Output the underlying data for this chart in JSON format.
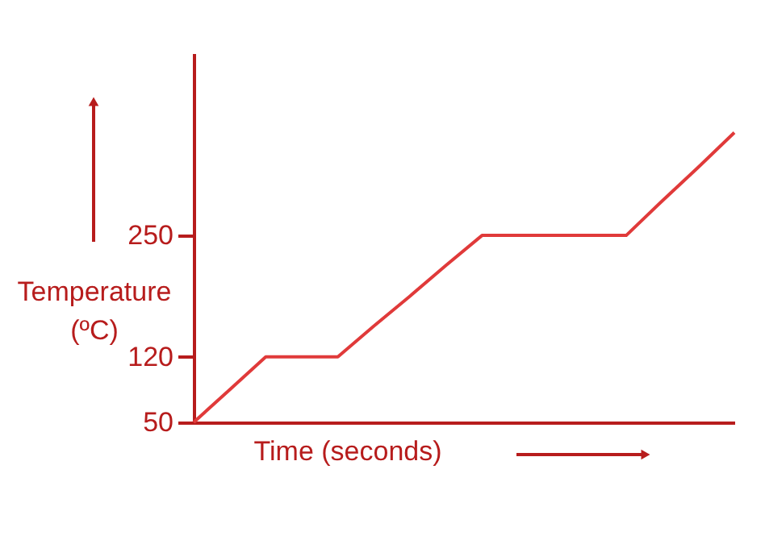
{
  "chart_data": {
    "type": "line",
    "xlabel": "Time (seconds)",
    "ylabel": "Temperature (ºC)",
    "categories": [
      null,
      null,
      null,
      null,
      null,
      null,
      null,
      null,
      null,
      null,
      null,
      null,
      null,
      null,
      null,
      null
    ],
    "series": [
      {
        "color": "#e03a3a",
        "values": [
          50,
          85,
          120,
          120,
          120,
          153,
          185,
          218,
          250,
          250,
          250,
          250,
          250,
          287,
          323,
          360
        ]
      }
    ],
    "ylim": [
      50,
      445
    ],
    "yticks": [
      50,
      120,
      250
    ],
    "grid": false,
    "tick_labels": "y",
    "marker": "none",
    "line_style": "solid"
  }
}
